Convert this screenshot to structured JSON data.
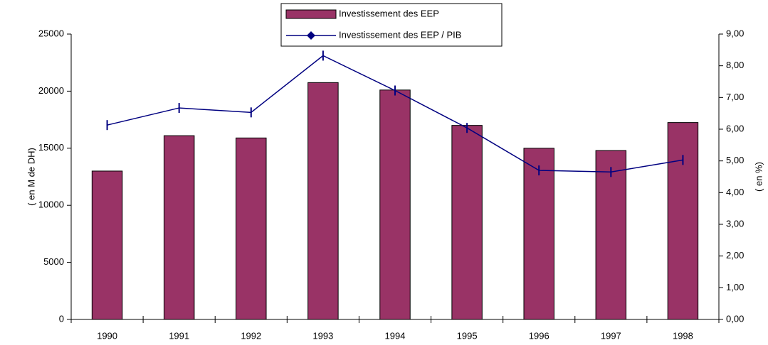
{
  "chart_data": {
    "type": "bar_line",
    "categories": [
      "1990",
      "1991",
      "1992",
      "1993",
      "1994",
      "1995",
      "1996",
      "1997",
      "1998"
    ],
    "series": [
      {
        "name": "Investissement des EEP",
        "color": "#993366",
        "type": "bar",
        "values": [
          13000,
          16100,
          15900,
          20750,
          20100,
          17000,
          15000,
          14800,
          17250
        ]
      },
      {
        "name": "Investissement des EEP / PIB",
        "color": "#000080",
        "type": "line",
        "axis": "y2",
        "values": [
          6.13,
          6.67,
          6.53,
          8.32,
          7.22,
          6.04,
          4.7,
          4.65,
          5.03
        ]
      }
    ],
    "ylabel": "( en M de DH)",
    "y2label": "( en %)",
    "ylim": [
      0,
      25000
    ],
    "yticks": [
      0,
      5000,
      10000,
      15000,
      20000,
      25000
    ],
    "y2lim": [
      0,
      9
    ],
    "y2ticks": [
      {
        "value": 0,
        "label": "0,00"
      },
      {
        "value": 1,
        "label": "1,00"
      },
      {
        "value": 2,
        "label": "2,00"
      },
      {
        "value": 3,
        "label": "3,00"
      },
      {
        "value": 4,
        "label": "4,00"
      },
      {
        "value": 5,
        "label": "5,00"
      },
      {
        "value": 6,
        "label": "6,00"
      },
      {
        "value": 7,
        "label": "7,00"
      },
      {
        "value": 8,
        "label": "8,00"
      },
      {
        "value": 9,
        "label": "9,00"
      }
    ],
    "legend": "top",
    "grid": false
  }
}
